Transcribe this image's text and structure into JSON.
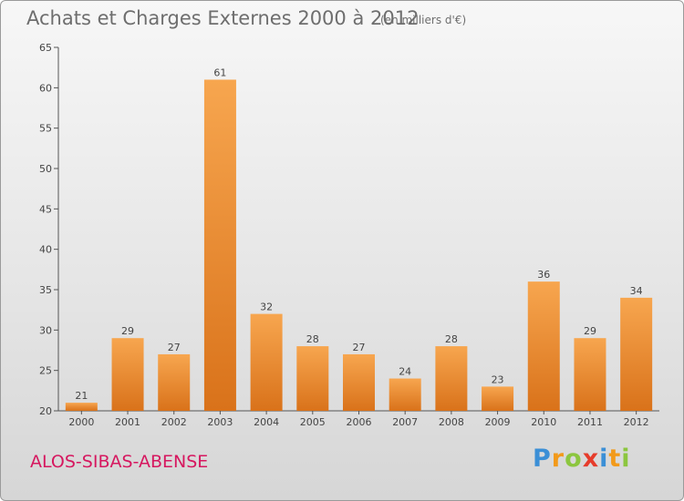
{
  "header": {
    "title": "Achats et Charges Externes 2000 à 2012",
    "subtitle": "(en milliers d'€)"
  },
  "footer": {
    "commune": "ALOS-SIBAS-ABENSE",
    "brand_letters": [
      "P",
      "r",
      "o",
      "x",
      "i",
      "t",
      "i"
    ],
    "brand_colors": [
      "#3b8fd6",
      "#f29a1a",
      "#8cc63f",
      "#e63c2b",
      "#3b8fd6",
      "#f29a1a",
      "#8cc63f"
    ]
  },
  "colors": {
    "bar_light": "#f7a64f",
    "bar_dark": "#d9721a",
    "axis": "#555555",
    "grid": "#c8c8c8"
  },
  "chart_data": {
    "type": "bar",
    "title": "Achats et Charges Externes 2000 à 2012",
    "subtitle": "(en milliers d'€)",
    "categories": [
      "2000",
      "2001",
      "2002",
      "2003",
      "2004",
      "2005",
      "2006",
      "2007",
      "2008",
      "2009",
      "2010",
      "2011",
      "2012"
    ],
    "values": [
      21,
      29,
      27,
      61,
      32,
      28,
      27,
      24,
      28,
      23,
      36,
      29,
      34
    ],
    "ylim": [
      20,
      65
    ],
    "yticks": [
      20,
      25,
      30,
      35,
      40,
      45,
      50,
      55,
      60,
      65
    ],
    "xlabel": "",
    "ylabel": "",
    "grid": false,
    "legend": "none"
  }
}
